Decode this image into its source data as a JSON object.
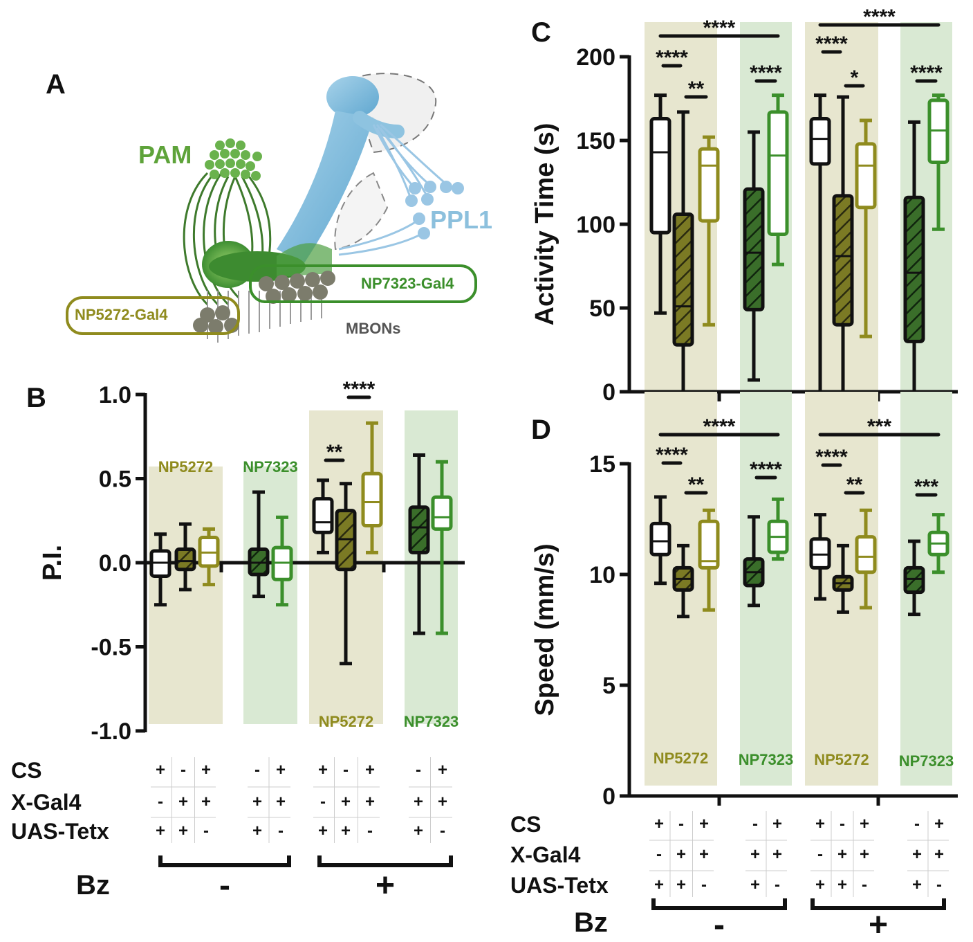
{
  "colors": {
    "olive": "#8f8b1e",
    "olive_dark": "#6b6a14",
    "olive_fill": "#7b7a24",
    "green": "#3b8f2b",
    "green_dark": "#1f4f1a",
    "green_fill": "#3a6e2a",
    "olive_shade": "#e7e6cf",
    "green_shade": "#d9e9d3",
    "blue": "#8cc0dd",
    "black": "#111111"
  },
  "panels": {
    "A": "A",
    "B": "B",
    "C": "C",
    "D": "D"
  },
  "diagram": {
    "pam_label": "PAM",
    "ppl1_label": "PPL1",
    "np5272_label": "NP5272-Gal4",
    "np7323_label": "NP7323-Gal4",
    "mbons_label": "MBONs"
  },
  "genotype": {
    "rows": [
      "CS",
      "X-Gal4",
      "UAS-Tetx"
    ],
    "bz_label": "Bz",
    "bz_minus": "-",
    "bz_plus": "+",
    "groups": [
      [
        [
          "+",
          "-",
          "+"
        ],
        [
          "-",
          "+",
          "+"
        ],
        [
          "+",
          "+",
          "-"
        ]
      ],
      [
        [
          "-",
          "+"
        ],
        [
          "+",
          "+"
        ],
        [
          "+",
          "-"
        ]
      ],
      [
        [
          "+",
          "-",
          "+"
        ],
        [
          "-",
          "+",
          "+"
        ],
        [
          "+",
          "+",
          "-"
        ]
      ],
      [
        [
          "-",
          "+"
        ],
        [
          "+",
          "+"
        ],
        [
          "+",
          "-"
        ]
      ]
    ]
  },
  "chart_data": [
    {
      "type": "box",
      "panel": "B",
      "ylabel": "P.I.",
      "ylim": [
        -1.0,
        1.0
      ],
      "yticks": [
        "1.0",
        "0.5",
        "0.0",
        "-0.5",
        "-1.0"
      ],
      "shade_labels": [
        "NP5272",
        "NP7323",
        "NP5272",
        "NP7323"
      ],
      "boxes": [
        {
          "group": 0,
          "min": -0.25,
          "q1": -0.08,
          "median": 0.0,
          "q3": 0.07,
          "max": 0.17
        },
        {
          "group": 0,
          "min": -0.16,
          "q1": -0.04,
          "median": 0.01,
          "q3": 0.08,
          "max": 0.23
        },
        {
          "group": 0,
          "min": -0.13,
          "q1": -0.02,
          "median": 0.06,
          "q3": 0.15,
          "max": 0.2
        },
        {
          "group": 1,
          "min": -0.2,
          "q1": -0.07,
          "median": 0.0,
          "q3": 0.08,
          "max": 0.42
        },
        {
          "group": 1,
          "min": -0.25,
          "q1": -0.1,
          "median": 0.0,
          "q3": 0.09,
          "max": 0.27
        },
        {
          "group": 2,
          "min": 0.06,
          "q1": 0.18,
          "median": 0.24,
          "q3": 0.38,
          "max": 0.49
        },
        {
          "group": 2,
          "min": -0.6,
          "q1": -0.04,
          "median": 0.14,
          "q3": 0.31,
          "max": 0.47
        },
        {
          "group": 2,
          "min": 0.06,
          "q1": 0.22,
          "median": 0.36,
          "q3": 0.53,
          "max": 0.83
        },
        {
          "group": 3,
          "min": -0.42,
          "q1": 0.06,
          "median": 0.21,
          "q3": 0.33,
          "max": 0.64
        },
        {
          "group": 3,
          "min": -0.42,
          "q1": 0.2,
          "median": 0.27,
          "q3": 0.39,
          "max": 0.6
        }
      ],
      "significance": [
        {
          "label": "**",
          "from": 5,
          "to": 6
        },
        {
          "label": "****",
          "from": 6,
          "to": 7
        }
      ]
    },
    {
      "type": "box",
      "panel": "C",
      "ylabel": "Activity Time (s)",
      "ylim": [
        0,
        200
      ],
      "yticks": [
        "200",
        "150",
        "100",
        "50",
        "0"
      ],
      "boxes": [
        {
          "group": 0,
          "min": 47,
          "q1": 95,
          "median": 143,
          "q3": 163,
          "max": 177
        },
        {
          "group": 0,
          "min": 0,
          "q1": 28,
          "median": 51,
          "q3": 106,
          "max": 167
        },
        {
          "group": 0,
          "min": 40,
          "q1": 102,
          "median": 135,
          "q3": 145,
          "max": 152
        },
        {
          "group": 1,
          "min": 7,
          "q1": 49,
          "median": 83,
          "q3": 121,
          "max": 155
        },
        {
          "group": 1,
          "min": 76,
          "q1": 94,
          "median": 141,
          "q3": 167,
          "max": 177
        },
        {
          "group": 2,
          "min": 0,
          "q1": 136,
          "median": 151,
          "q3": 163,
          "max": 177
        },
        {
          "group": 2,
          "min": 0,
          "q1": 40,
          "median": 81,
          "q3": 117,
          "max": 176
        },
        {
          "group": 2,
          "min": 33,
          "q1": 110,
          "median": 135,
          "q3": 148,
          "max": 162
        },
        {
          "group": 3,
          "min": 0,
          "q1": 30,
          "median": 71,
          "q3": 116,
          "max": 161
        },
        {
          "group": 3,
          "min": 97,
          "q1": 137,
          "median": 156,
          "q3": 174,
          "max": 177
        }
      ],
      "significance": [
        {
          "label": "****",
          "from": 0,
          "to": 1
        },
        {
          "label": "**",
          "from": 1,
          "to": 2
        },
        {
          "label": "****",
          "from": 3,
          "to": 4
        },
        {
          "label": "****",
          "from": 5,
          "to": 6
        },
        {
          "label": "*",
          "from": 6,
          "to": 7
        },
        {
          "label": "****",
          "from": 8,
          "to": 9
        },
        {
          "label": "****",
          "from": 0,
          "to": 4,
          "tier": 2
        },
        {
          "label": "****",
          "from": 5,
          "to": 9,
          "tier": 2
        }
      ]
    },
    {
      "type": "box",
      "panel": "D",
      "ylabel": "Speed (mm/s)",
      "ylim": [
        0,
        15
      ],
      "yticks": [
        "15",
        "10",
        "5",
        "0"
      ],
      "shade_labels": [
        "NP5272",
        "NP7323",
        "NP5272",
        "NP7323"
      ],
      "boxes": [
        {
          "group": 0,
          "min": 9.6,
          "q1": 10.9,
          "median": 11.5,
          "q3": 12.3,
          "max": 13.5
        },
        {
          "group": 0,
          "min": 8.1,
          "q1": 9.3,
          "median": 9.8,
          "q3": 10.3,
          "max": 11.3
        },
        {
          "group": 0,
          "min": 8.4,
          "q1": 10.3,
          "median": 10.6,
          "q3": 12.4,
          "max": 12.9
        },
        {
          "group": 1,
          "min": 8.6,
          "q1": 9.5,
          "median": 10.1,
          "q3": 10.7,
          "max": 12.6
        },
        {
          "group": 1,
          "min": 10.7,
          "q1": 11.0,
          "median": 11.7,
          "q3": 12.4,
          "max": 13.4
        },
        {
          "group": 2,
          "min": 8.9,
          "q1": 10.3,
          "median": 10.9,
          "q3": 11.6,
          "max": 12.7
        },
        {
          "group": 2,
          "min": 8.3,
          "q1": 9.3,
          "median": 9.6,
          "q3": 9.9,
          "max": 11.3
        },
        {
          "group": 2,
          "min": 8.5,
          "q1": 10.1,
          "median": 10.8,
          "q3": 11.7,
          "max": 12.9
        },
        {
          "group": 3,
          "min": 8.2,
          "q1": 9.2,
          "median": 9.8,
          "q3": 10.3,
          "max": 11.5
        },
        {
          "group": 3,
          "min": 10.1,
          "q1": 10.9,
          "median": 11.4,
          "q3": 11.9,
          "max": 12.7
        }
      ],
      "significance": [
        {
          "label": "****",
          "from": 0,
          "to": 1
        },
        {
          "label": "**",
          "from": 1,
          "to": 2
        },
        {
          "label": "****",
          "from": 3,
          "to": 4
        },
        {
          "label": "****",
          "from": 5,
          "to": 6
        },
        {
          "label": "**",
          "from": 6,
          "to": 7
        },
        {
          "label": "***",
          "from": 8,
          "to": 9
        },
        {
          "label": "****",
          "from": 0,
          "to": 4,
          "tier": 2
        },
        {
          "label": "***",
          "from": 5,
          "to": 9,
          "tier": 2
        }
      ]
    }
  ]
}
